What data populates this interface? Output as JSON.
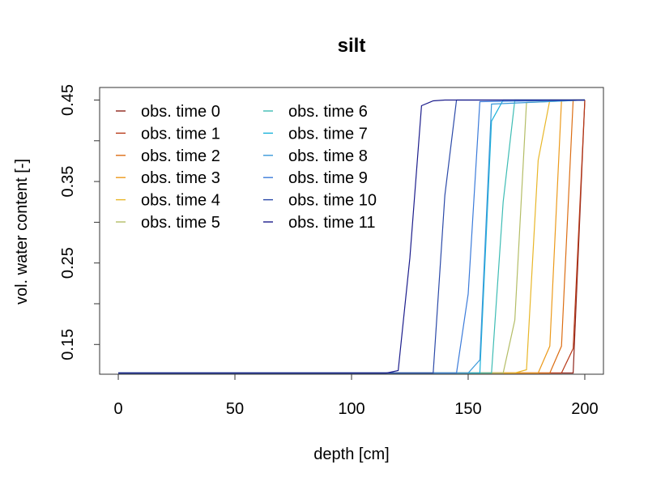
{
  "chart_data": {
    "type": "line",
    "title": "silt",
    "xlabel": "depth [cm]",
    "ylabel": "vol. water content [-]",
    "xlim": [
      -8,
      208
    ],
    "ylim": [
      0.1135,
      0.4654
    ],
    "x_ticks": [
      0,
      50,
      100,
      150,
      200
    ],
    "y_ticks": [
      0.15,
      0.2,
      0.25,
      0.3,
      0.35,
      0.4,
      0.45
    ],
    "y_tick_labels": [
      {
        "value": 0.15,
        "label": "0.15"
      },
      {
        "value": 0.25,
        "label": "0.25"
      },
      {
        "value": 0.35,
        "label": "0.35"
      },
      {
        "value": 0.45,
        "label": "0.45"
      }
    ],
    "grid": false,
    "legend": {
      "placement": "top-left",
      "columns": 2,
      "entries": [
        "obs. time  0",
        "obs. time  1",
        "obs. time  2",
        "obs. time  3",
        "obs. time  4",
        "obs. time  5",
        "obs. time  6",
        "obs. time  7",
        "obs. time  8",
        "obs. time  9",
        "obs. time  10",
        "obs. time  11"
      ]
    },
    "series": [
      {
        "name": "obs. time  0",
        "color": "#8E2319",
        "x": [
          0,
          195,
          200
        ],
        "y": [
          0.115,
          0.115,
          0.45
        ]
      },
      {
        "name": "obs. time  1",
        "color": "#B83A19",
        "x": [
          0,
          190,
          195,
          200
        ],
        "y": [
          0.115,
          0.115,
          0.145,
          0.45
        ]
      },
      {
        "name": "obs. time  2",
        "color": "#DC6E14",
        "x": [
          0,
          185,
          190,
          195,
          200
        ],
        "y": [
          0.115,
          0.115,
          0.148,
          0.45,
          0.45
        ]
      },
      {
        "name": "obs. time  3",
        "color": "#EC9A1B",
        "x": [
          0,
          180,
          185,
          190,
          200
        ],
        "y": [
          0.115,
          0.115,
          0.148,
          0.449,
          0.45
        ]
      },
      {
        "name": "obs. time  4",
        "color": "#E8B628",
        "x": [
          0,
          170,
          175,
          180,
          185,
          200
        ],
        "y": [
          0.115,
          0.115,
          0.119,
          0.376,
          0.45,
          0.45
        ]
      },
      {
        "name": "obs. time  5",
        "color": "#B4BD66",
        "x": [
          0,
          165,
          170,
          175,
          200
        ],
        "y": [
          0.115,
          0.115,
          0.18,
          0.447,
          0.45
        ]
      },
      {
        "name": "obs. time  6",
        "color": "#3DBCB4",
        "x": [
          0,
          160,
          165,
          170,
          200
        ],
        "y": [
          0.115,
          0.115,
          0.325,
          0.45,
          0.45
        ]
      },
      {
        "name": "obs. time  7",
        "color": "#1AB1DA",
        "x": [
          0,
          155,
          160,
          165,
          200
        ],
        "y": [
          0.115,
          0.115,
          0.424,
          0.45,
          0.45
        ]
      },
      {
        "name": "obs. time  8",
        "color": "#3A99DA",
        "x": [
          0,
          150,
          155,
          160,
          200
        ],
        "y": [
          0.115,
          0.115,
          0.131,
          0.445,
          0.45
        ]
      },
      {
        "name": "obs. time  9",
        "color": "#3B7BDA",
        "x": [
          0,
          145,
          150,
          155,
          200
        ],
        "y": [
          0.115,
          0.115,
          0.212,
          0.448,
          0.45
        ]
      },
      {
        "name": "obs. time  10",
        "color": "#2B49A8",
        "x": [
          0,
          135,
          140,
          145,
          200
        ],
        "y": [
          0.115,
          0.115,
          0.333,
          0.45,
          0.45
        ]
      },
      {
        "name": "obs. time  11",
        "color": "#1C1D8C",
        "x": [
          0,
          115,
          120,
          125,
          130,
          135,
          140,
          200
        ],
        "y": [
          0.115,
          0.115,
          0.118,
          0.256,
          0.443,
          0.449,
          0.45,
          0.45
        ]
      }
    ]
  }
}
